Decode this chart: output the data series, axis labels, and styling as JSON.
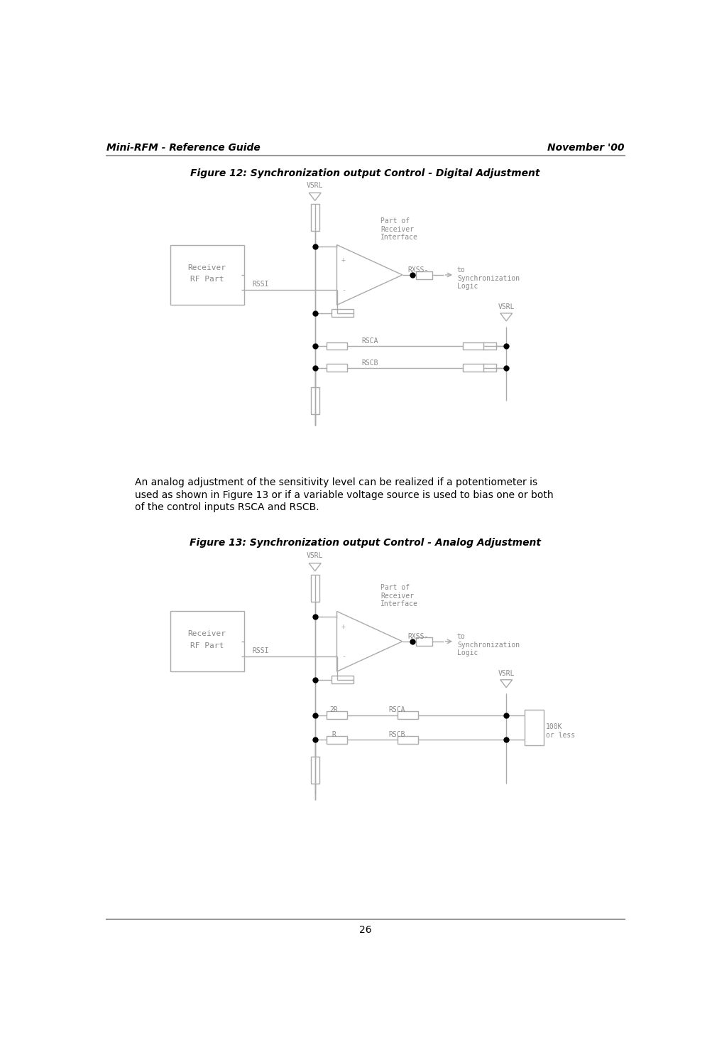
{
  "page_width": 10.04,
  "page_height": 14.92,
  "background_color": "#ffffff",
  "header_text_left": "Mini-RFM - Reference Guide",
  "header_text_right": "November '00",
  "footer_text": "26",
  "header_font_size": 10,
  "fig12_title": "Figure 12: Synchronization output Control - Digital Adjustment",
  "fig13_title": "Figure 13: Synchronization output Control - Analog Adjustment",
  "body_text_line1": "An analog adjustment of the sensitivity level can be realized if a potentiometer is",
  "body_text_line2": "used as shown in Figure 13 or if a variable voltage source is used to bias one or both",
  "body_text_line3": "of the control inputs RSCA and RSCB.",
  "lc": "#aaaaaa",
  "label_color": "#888888",
  "black": "#000000",
  "dark_line": "#555555"
}
